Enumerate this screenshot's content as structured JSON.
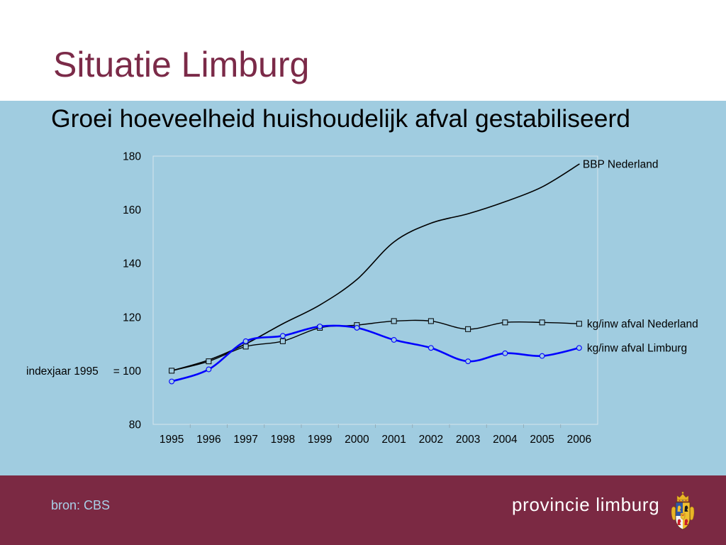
{
  "header": {
    "title": "Situatie Limburg"
  },
  "main": {
    "subtitle": "Groei hoeveelheid huishoudelijk afval gestabiliseerd"
  },
  "chart_data": {
    "type": "line",
    "x": [
      "1995",
      "1996",
      "1997",
      "1998",
      "1999",
      "2000",
      "2001",
      "2002",
      "2003",
      "2004",
      "2005",
      "2006"
    ],
    "ylim": [
      80,
      180
    ],
    "yticks": [
      80,
      100,
      120,
      140,
      160,
      180
    ],
    "ytick_labels": [
      "80",
      "= 100",
      "120",
      "140",
      "160",
      "180"
    ],
    "y_annotation": "indexjaar 1995",
    "grid": false,
    "legend": "right",
    "series": [
      {
        "name": "BBP Nederland",
        "color": "#000000",
        "marker": "none",
        "smooth": true,
        "values": [
          100,
          104,
          110,
          117.5,
          124.5,
          134,
          148,
          155,
          158.5,
          163,
          168.5,
          177
        ]
      },
      {
        "name": "kg/inw afval Nederland",
        "color": "#000000",
        "marker": "square",
        "smooth": true,
        "values": [
          100,
          103.5,
          109,
          111,
          116,
          117,
          118.5,
          118.5,
          115.5,
          118,
          118,
          117.5
        ]
      },
      {
        "name": "kg/inw afval Limburg",
        "color": "#0000ff",
        "marker": "circle",
        "smooth": true,
        "values": [
          96,
          100.5,
          111,
          113,
          116.5,
          116,
          111.5,
          108.5,
          103.5,
          106.5,
          105.5,
          108.5
        ]
      }
    ]
  },
  "footer": {
    "source": "bron: CBS",
    "brand": "provincie limburg",
    "logo_icon": "coat-of-arms-icon"
  },
  "colors": {
    "title": "#7b2a48",
    "band": "#a0cce0",
    "footer": "#7b2943",
    "source_text": "#a9d0e8",
    "brand_text": "#ffffff"
  }
}
